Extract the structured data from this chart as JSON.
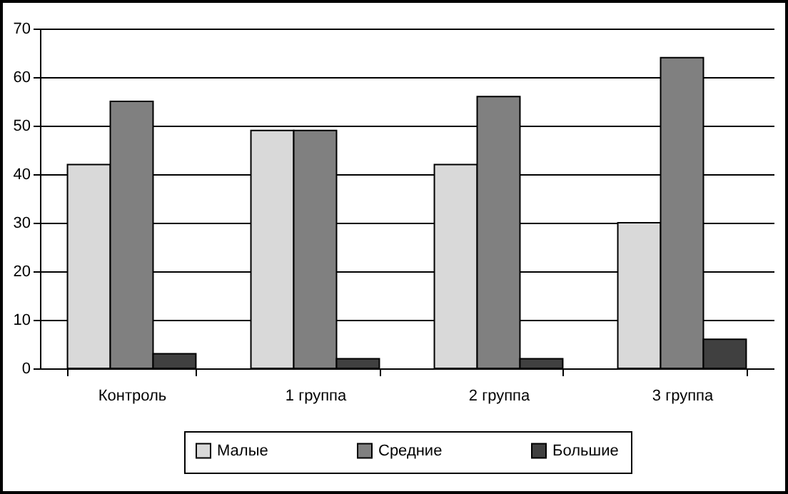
{
  "chart_data": {
    "type": "bar",
    "categories": [
      "Контроль",
      "1 группа",
      "2 группа",
      "3 группа"
    ],
    "series": [
      {
        "name": "Малые",
        "color": "#d9d9d9",
        "values": [
          42,
          49,
          42,
          30
        ]
      },
      {
        "name": "Средние",
        "color": "#808080",
        "values": [
          55,
          49,
          56,
          64
        ]
      },
      {
        "name": "Большие",
        "color": "#404040",
        "values": [
          3,
          2,
          2,
          6
        ]
      }
    ],
    "ylim": [
      0,
      70
    ],
    "yticks": [
      0,
      10,
      20,
      30,
      40,
      50,
      60,
      70
    ],
    "grid": "y",
    "legend": "bottom"
  }
}
